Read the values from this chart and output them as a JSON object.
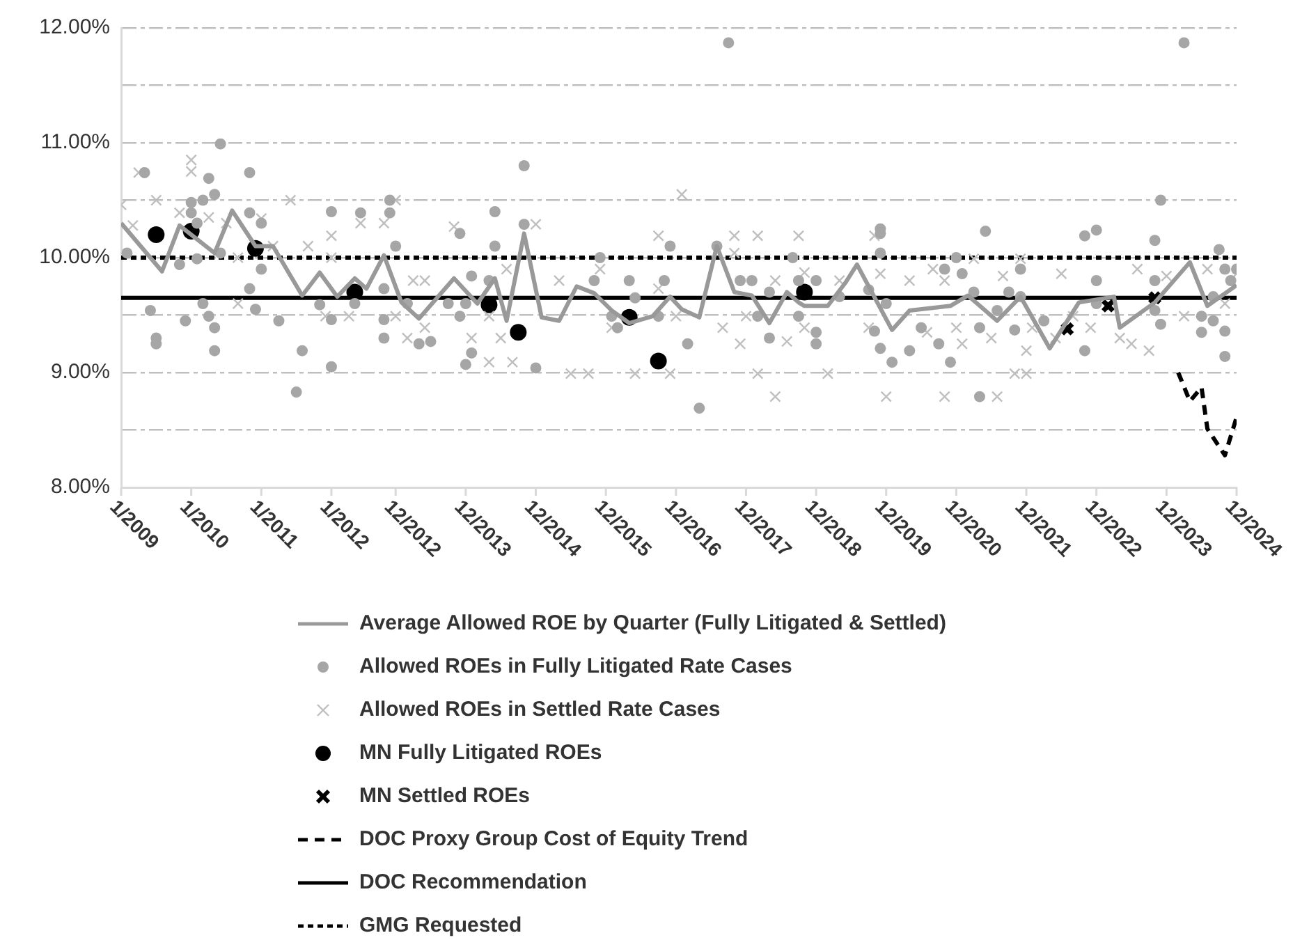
{
  "chart_data": {
    "type": "scatter",
    "xlim": [
      "2009-01",
      "2024-12"
    ],
    "xticks": [
      {
        "value": "2009-01",
        "label": "1/2009"
      },
      {
        "value": "2010-01",
        "label": "1/2010"
      },
      {
        "value": "2011-01",
        "label": "1/2011"
      },
      {
        "value": "2012-01",
        "label": "1/2012"
      },
      {
        "value": "2012-12",
        "label": "12/2012"
      },
      {
        "value": "2013-12",
        "label": "12/2013"
      },
      {
        "value": "2014-12",
        "label": "12/2014"
      },
      {
        "value": "2015-12",
        "label": "12/2015"
      },
      {
        "value": "2016-12",
        "label": "12/2016"
      },
      {
        "value": "2017-12",
        "label": "12/2017"
      },
      {
        "value": "2018-12",
        "label": "12/2018"
      },
      {
        "value": "2019-12",
        "label": "12/2019"
      },
      {
        "value": "2020-12",
        "label": "12/2020"
      },
      {
        "value": "2021-12",
        "label": "12/2021"
      },
      {
        "value": "2022-12",
        "label": "12/2022"
      },
      {
        "value": "2023-12",
        "label": "12/2023"
      },
      {
        "value": "2024-12",
        "label": "12/2024"
      }
    ],
    "ylim": [
      8,
      12
    ],
    "yticks": [
      {
        "value": 8,
        "label": "8.00%"
      },
      {
        "value": 8.5,
        "label": null
      },
      {
        "value": 9,
        "label": "9.00%"
      },
      {
        "value": 9.5,
        "label": null
      },
      {
        "value": 10,
        "label": "10.00%"
      },
      {
        "value": 10.5,
        "label": null
      },
      {
        "value": 11,
        "label": "11.00%"
      },
      {
        "value": 11.5,
        "label": null
      },
      {
        "value": 12,
        "label": "12.00%"
      }
    ],
    "grid": "y",
    "legend": "bottom",
    "series": [
      {
        "name": "Average Allowed ROE by Quarter (Fully Litigated & Settled)",
        "type": "line",
        "color": "#999999",
        "marker": "none",
        "line_style": "solid",
        "x": [
          "2009-01",
          "2009-08",
          "2009-11",
          "2010-05",
          "2010-08",
          "2010-12",
          "2011-03",
          "2011-08",
          "2011-11",
          "2012-02",
          "2012-05",
          "2012-07",
          "2012-10",
          "2013-01",
          "2013-04",
          "2013-10",
          "2014-02",
          "2014-05",
          "2014-07",
          "2014-10",
          "2015-01",
          "2015-04",
          "2015-07",
          "2015-10",
          "2016-01",
          "2016-04",
          "2016-08",
          "2016-11",
          "2017-01",
          "2017-04",
          "2017-07",
          "2017-10",
          "2018-01",
          "2018-04",
          "2018-07",
          "2018-09",
          "2018-10",
          "2019-02",
          "2019-05",
          "2019-07",
          "2020-01",
          "2020-04",
          "2020-11",
          "2021-02",
          "2021-07",
          "2021-11",
          "2022-04",
          "2022-09",
          "2023-03",
          "2023-04",
          "2023-10",
          "2024-04",
          "2024-07",
          "2024-12"
        ],
        "values": [
          10.3,
          9.88,
          10.28,
          10.04,
          10.41,
          10.1,
          10.1,
          9.67,
          9.87,
          9.66,
          9.82,
          9.73,
          10.02,
          9.61,
          9.47,
          9.82,
          9.6,
          9.82,
          9.45,
          10.21,
          9.48,
          9.45,
          9.75,
          9.69,
          9.54,
          9.43,
          9.49,
          9.66,
          9.55,
          9.48,
          10.1,
          9.7,
          9.67,
          9.43,
          9.7,
          9.61,
          9.58,
          9.58,
          9.78,
          9.94,
          9.37,
          9.54,
          9.58,
          9.67,
          9.45,
          9.66,
          9.21,
          9.61,
          9.66,
          9.39,
          9.61,
          9.96,
          9.58,
          9.76
        ]
      },
      {
        "name": "Allowed ROEs in Fully Litigated Rate Cases",
        "type": "scatter",
        "color": "#a6a6a6",
        "marker": "circle",
        "x": [
          "2010-06",
          "2009-05",
          "2010-04",
          "2010-11",
          "2010-05",
          "2010-01",
          "2010-03",
          "2009-02",
          "2010-01",
          "2010-02",
          "2010-02",
          "2009-11",
          "2010-06",
          "2010-11",
          "2011-01",
          "2011-01",
          "2010-11",
          "2010-12",
          "2009-06",
          "2009-07",
          "2009-07",
          "2009-12",
          "2010-03",
          "2010-04",
          "2010-05",
          "2010-05",
          "2011-04",
          "2011-08",
          "2011-07",
          "2012-01",
          "2011-11",
          "2012-01",
          "2012-01",
          "2012-06",
          "2012-05",
          "2012-10",
          "2012-10",
          "2012-10",
          "2012-11",
          "2012-11",
          "2012-12",
          "2013-02",
          "2013-04",
          "2013-06",
          "2013-09",
          "2013-11",
          "2013-11",
          "2013-12",
          "2014-01",
          "2013-12",
          "2014-01",
          "2014-05",
          "2014-05",
          "2014-10",
          "2014-04",
          "2014-10",
          "2014-12",
          "2015-11",
          "2015-10",
          "2016-04",
          "2016-05",
          "2016-02",
          "2016-01",
          "2016-10",
          "2016-11",
          "2016-09",
          "2017-02",
          "2017-04",
          "2017-09",
          "2017-07",
          "2017-11",
          "2018-01",
          "2018-02",
          "2018-04",
          "2018-04",
          "2018-08",
          "2018-09",
          "2018-09",
          "2018-12",
          "2018-12",
          "2018-12",
          "2019-04",
          "2019-11",
          "2019-11",
          "2019-11",
          "2019-09",
          "2019-12",
          "2019-10",
          "2019-11",
          "2020-01",
          "2020-04",
          "2020-06",
          "2020-09",
          "2020-11",
          "2020-10",
          "2020-12",
          "2021-01",
          "2021-03",
          "2021-05",
          "2021-07",
          "2021-04",
          "2021-04",
          "2021-09",
          "2021-10",
          "2021-11",
          "2021-11",
          "2022-03",
          "2022-10",
          "2022-12",
          "2022-12",
          "2022-10",
          "2022-12",
          "2023-10",
          "2023-11",
          "2024-03",
          "2023-10",
          "2023-10",
          "2023-11",
          "2024-06",
          "2024-08",
          "2024-10",
          "2024-10",
          "2024-09",
          "2024-10",
          "2024-12",
          "2024-11",
          "2024-08",
          "2024-06"
        ],
        "values": [
          10.99,
          10.74,
          10.69,
          10.74,
          10.55,
          10.48,
          10.5,
          10.04,
          10.39,
          10.3,
          9.99,
          9.94,
          10.04,
          10.39,
          10.3,
          9.9,
          9.73,
          9.55,
          9.54,
          9.3,
          9.25,
          9.45,
          9.6,
          9.49,
          9.39,
          9.19,
          9.45,
          9.19,
          8.83,
          10.4,
          9.59,
          9.05,
          9.46,
          10.39,
          9.6,
          9.73,
          9.46,
          9.3,
          10.5,
          10.39,
          10.1,
          9.6,
          9.25,
          9.27,
          9.6,
          10.21,
          9.49,
          9.6,
          9.84,
          9.07,
          9.17,
          10.4,
          10.1,
          10.8,
          9.8,
          10.29,
          9.04,
          10.0,
          9.8,
          9.8,
          9.65,
          9.39,
          9.49,
          9.8,
          10.1,
          9.49,
          9.25,
          8.69,
          11.87,
          10.1,
          9.8,
          9.8,
          9.49,
          9.7,
          9.3,
          10.0,
          9.8,
          9.49,
          9.35,
          9.25,
          9.8,
          9.66,
          10.25,
          10.21,
          10.04,
          9.72,
          9.6,
          9.36,
          9.21,
          9.09,
          9.19,
          9.39,
          9.25,
          9.09,
          9.9,
          10.0,
          9.86,
          9.7,
          10.23,
          9.54,
          9.39,
          8.79,
          9.7,
          9.37,
          9.66,
          9.9,
          9.45,
          10.19,
          10.24,
          9.8,
          9.19,
          9.6,
          10.15,
          10.5,
          11.87,
          9.8,
          9.54,
          9.42,
          9.49,
          9.45,
          9.36,
          9.14,
          10.07,
          9.9,
          9.9,
          9.8,
          9.66,
          9.35
        ]
      },
      {
        "name": "Allowed ROEs in Settled Rate Cases",
        "type": "scatter",
        "color": "#bfbfbf",
        "marker": "cross",
        "x": [
          "2009-01",
          "2009-04",
          "2009-03",
          "2009-07",
          "2009-11",
          "2010-01",
          "2010-01",
          "2010-04",
          "2010-07",
          "2010-09",
          "2010-09",
          "2011-01",
          "2011-06",
          "2011-03",
          "2011-09",
          "2012-01",
          "2012-01",
          "2011-12",
          "2012-04",
          "2012-06",
          "2012-10",
          "2012-12",
          "2012-12",
          "2013-02",
          "2013-03",
          "2013-05",
          "2013-05",
          "2013-10",
          "2014-01",
          "2014-04",
          "2014-04",
          "2014-07",
          "2014-06",
          "2014-08",
          "2014-12",
          "2015-04",
          "2015-06",
          "2015-09",
          "2015-11",
          "2016-01",
          "2016-05",
          "2016-09",
          "2016-09",
          "2016-12",
          "2016-11",
          "2017-01",
          "2017-08",
          "2017-10",
          "2017-10",
          "2017-11",
          "2017-12",
          "2018-02",
          "2018-02",
          "2018-05",
          "2018-05",
          "2018-09",
          "2018-07",
          "2018-10",
          "2018-10",
          "2019-02",
          "2019-04",
          "2019-10",
          "2019-11",
          "2020-04",
          "2019-09",
          "2019-12",
          "2020-08",
          "2020-10",
          "2020-07",
          "2020-12",
          "2020-10",
          "2021-01",
          "2021-03",
          "2021-07",
          "2021-06",
          "2021-11",
          "2021-08",
          "2021-10",
          "2021-12",
          "2021-12",
          "2022-01",
          "2022-06",
          "2022-05",
          "2022-08",
          "2022-11",
          "2023-04",
          "2023-06",
          "2023-07",
          "2023-09",
          "2023-12",
          "2024-03",
          "2024-07",
          "2024-10",
          "2024-12"
        ],
        "values": [
          10.46,
          10.74,
          10.28,
          10.5,
          10.39,
          10.85,
          10.75,
          10.35,
          10.3,
          10.0,
          9.6,
          10.34,
          10.5,
          10.1,
          10.1,
          10.19,
          10.0,
          9.49,
          9.49,
          10.3,
          10.3,
          10.5,
          9.49,
          9.3,
          9.8,
          9.8,
          9.39,
          10.27,
          9.3,
          9.09,
          9.49,
          9.9,
          9.3,
          9.09,
          10.29,
          9.8,
          8.99,
          8.99,
          9.9,
          9.39,
          8.99,
          9.73,
          10.19,
          9.49,
          8.99,
          10.55,
          9.39,
          10.19,
          10.04,
          9.25,
          9.49,
          8.99,
          10.19,
          9.8,
          8.79,
          10.19,
          9.27,
          9.39,
          9.87,
          8.99,
          9.8,
          10.19,
          9.86,
          9.8,
          9.39,
          8.79,
          9.9,
          9.8,
          9.35,
          9.39,
          8.79,
          9.25,
          9.99,
          8.79,
          9.3,
          9.99,
          9.84,
          8.99,
          8.99,
          9.19,
          9.39,
          9.86,
          9.3,
          9.49,
          9.39,
          9.3,
          9.25,
          9.9,
          9.19,
          9.84,
          9.49,
          9.9,
          9.6,
          9.86
        ]
      },
      {
        "name": "MN Fully Litigated ROEs",
        "type": "scatter",
        "color": "#000000",
        "marker": "circle",
        "x": [
          "2009-07",
          "2010-01",
          "2010-12",
          "2012-05",
          "2014-04",
          "2014-09",
          "2016-04",
          "2016-09",
          "2018-10"
        ],
        "values": [
          10.2,
          10.23,
          10.08,
          9.7,
          9.59,
          9.35,
          9.48,
          9.1,
          9.7
        ]
      },
      {
        "name": "MN Settled ROEs",
        "type": "scatter",
        "color": "#000000",
        "marker": "cross",
        "x": [
          "2022-07",
          "2023-02",
          "2023-10"
        ],
        "values": [
          9.38,
          9.58,
          9.65
        ]
      },
      {
        "name": "DOC Proxy Group Cost of Equity Trend",
        "type": "line",
        "color": "#000000",
        "marker": "none",
        "line_style": "dashed",
        "x": [
          "2024-02",
          "2024-04",
          "2024-06",
          "2024-07",
          "2024-10",
          "2024-12"
        ],
        "values": [
          9.0,
          8.75,
          8.87,
          8.51,
          8.28,
          8.61
        ]
      },
      {
        "name": "DOC Recommendation",
        "type": "line",
        "color": "#000000",
        "marker": "none",
        "line_style": "solid",
        "x": [
          "2009-01",
          "2024-12"
        ],
        "values": [
          9.65,
          9.65
        ]
      },
      {
        "name": "GMG Requested",
        "type": "line",
        "color": "#000000",
        "marker": "none",
        "line_style": "dotted",
        "x": [
          "2009-01",
          "2024-12"
        ],
        "values": [
          10.0,
          10.0
        ]
      }
    ]
  }
}
